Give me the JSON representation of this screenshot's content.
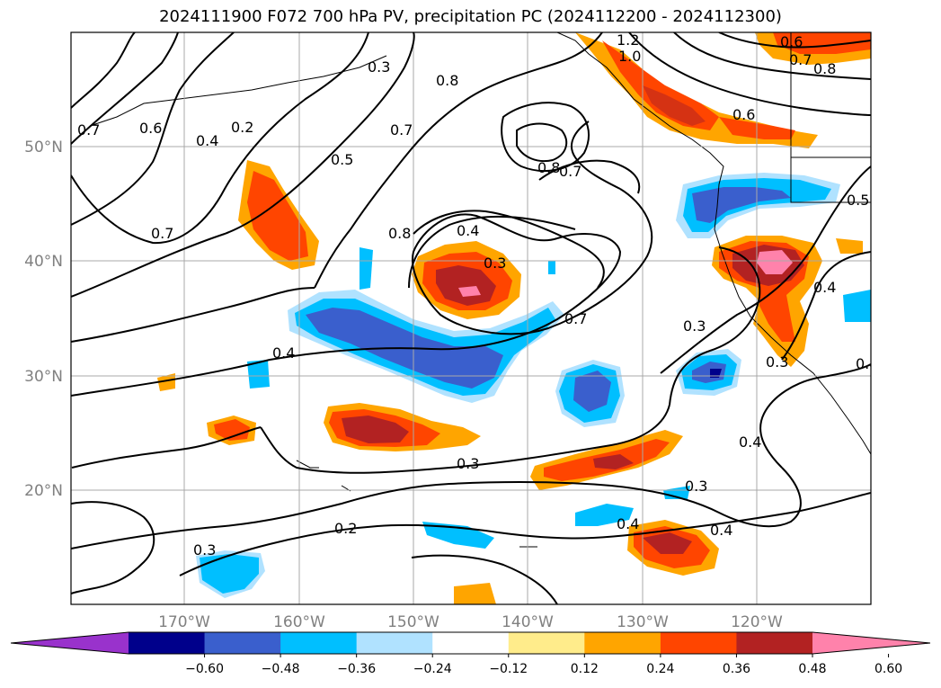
{
  "title": "2024111900 F072 700 hPa PV, precipitation PC (2024112200 - 2024112300)",
  "lat_labels": [
    "50°N",
    "40°N",
    "30°N",
    "20°N"
  ],
  "lon_labels": [
    "170°W",
    "160°W",
    "150°W",
    "140°W",
    "130°W",
    "120°W"
  ],
  "colorbar": {
    "ticks": [
      "−0.60",
      "−0.48",
      "−0.36",
      "−0.24",
      "−0.12",
      "0.12",
      "0.24",
      "0.36",
      "0.48",
      "0.60"
    ],
    "colors": [
      "#9932cc",
      "#00008b",
      "#3a5fcd",
      "#00bfff",
      "#b0e2ff",
      "#ffffff",
      "#ffec8b",
      "#ffa500",
      "#ff4500",
      "#b22222",
      "#ff82ab"
    ]
  },
  "contour_labels": [
    "1.2",
    "1.0",
    "0.6",
    "0.7",
    "0.8",
    "0.6",
    "0.7",
    "0.6",
    "0.4",
    "0.2",
    "0.3",
    "0.8",
    "0.7",
    "0.5",
    "0.7",
    "0.8",
    "0.7",
    "0.8",
    "0.4",
    "0.3",
    "0.7",
    "0.4",
    "0.5",
    "0.3",
    "0.4",
    "0.3",
    "0.4",
    "0.3",
    "0.3",
    "0.2",
    "0.4",
    "0.4",
    "0.3",
    "0.4"
  ]
}
